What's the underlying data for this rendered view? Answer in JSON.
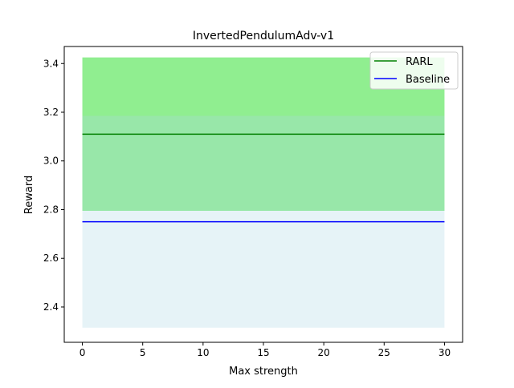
{
  "chart_data": {
    "type": "line",
    "title": "InvertedPendulumAdv-v1",
    "xlabel": "Max strength",
    "ylabel": "Reward",
    "xlim": [
      -1.5,
      31.5
    ],
    "ylim": [
      2.255,
      3.47
    ],
    "x_ticks": [
      0,
      5,
      10,
      15,
      20,
      25,
      30
    ],
    "y_ticks": [
      2.4,
      2.6,
      2.8,
      3.0,
      3.2,
      3.4
    ],
    "grid": false,
    "legend_position": "top-right",
    "series": [
      {
        "name": "RARL",
        "color": "#008000",
        "band_color": "#90ee90",
        "x": [
          0,
          30
        ],
        "mean": [
          3.11,
          3.11
        ],
        "lower": [
          2.795,
          2.795
        ],
        "upper": [
          3.425,
          3.425
        ]
      },
      {
        "name": "Baseline",
        "color": "#0000ff",
        "band_color": "#add8e6",
        "x": [
          0,
          30
        ],
        "mean": [
          2.75,
          2.75
        ],
        "lower": [
          2.315,
          2.315
        ],
        "upper": [
          3.185,
          3.185
        ]
      }
    ]
  }
}
